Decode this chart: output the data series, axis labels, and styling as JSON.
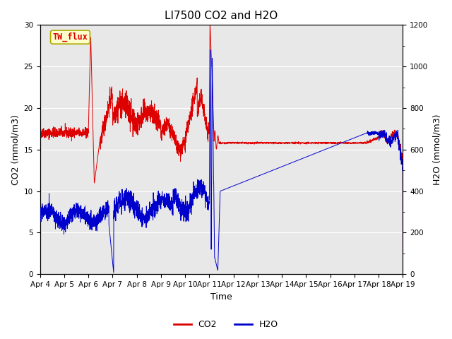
{
  "title": "LI7500 CO2 and H2O",
  "xlabel": "Time",
  "ylabel_left": "CO2 (mmol/m3)",
  "ylabel_right": "H2O (mmol/m3)",
  "ylim_left": [
    0,
    30
  ],
  "ylim_right": [
    0,
    1200
  ],
  "station_label": "TW_flux",
  "x_tick_labels": [
    "Apr 4",
    "Apr 5",
    "Apr 6",
    "Apr 7",
    "Apr 8",
    "Apr 9",
    "Apr 10",
    "Apr 11",
    "Apr 12",
    "Apr 13",
    "Apr 14",
    "Apr 15",
    "Apr 16",
    "Apr 17",
    "Apr 18",
    "Apr 19"
  ],
  "bg_color": "#e8e8e8",
  "co2_color": "#dd0000",
  "h2o_color": "#0000cc",
  "legend_co2": "CO2",
  "legend_h2o": "H2O",
  "title_fontsize": 11,
  "label_fontsize": 9,
  "tick_fontsize": 7.5
}
